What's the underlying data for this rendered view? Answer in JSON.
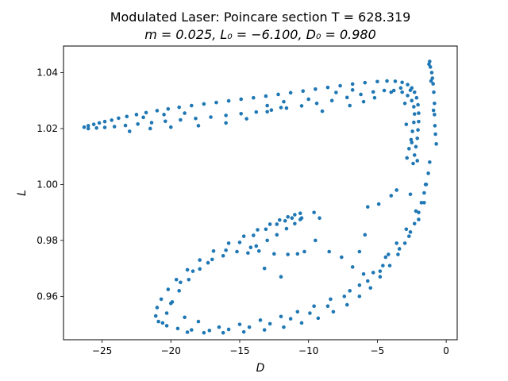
{
  "chart_data": {
    "type": "scatter",
    "title_line1": "Modulated Laser: Poincare section T = 628.319",
    "title_line2": "m = 0.025, L₀ = −6.100, D₀ = 0.980",
    "xlabel": "D",
    "ylabel": "L",
    "xlim": [
      -27.8,
      0.8
    ],
    "ylim": [
      0.9445,
      1.0495
    ],
    "xticks": [
      -25,
      -20,
      -15,
      -10,
      -5,
      0
    ],
    "xtick_labels": [
      "−25",
      "−20",
      "−15",
      "−10",
      "−5",
      "0"
    ],
    "yticks": [
      0.96,
      0.98,
      1.0,
      1.02,
      1.04
    ],
    "ytick_labels": [
      "0.96",
      "0.98",
      "1.00",
      "1.02",
      "1.04"
    ],
    "grid": false,
    "marker_color": "#1f77b4",
    "series": [
      {
        "points": [
          [
            -26.3,
            1.0205
          ],
          [
            -26.0,
            1.021
          ],
          [
            -25.6,
            1.0215
          ],
          [
            -25.2,
            1.022
          ],
          [
            -24.8,
            1.0225
          ],
          [
            -24.3,
            1.023
          ],
          [
            -23.8,
            1.0237
          ],
          [
            -23.2,
            1.0243
          ],
          [
            -22.5,
            1.025
          ],
          [
            -21.8,
            1.0257
          ],
          [
            -21.0,
            1.0264
          ],
          [
            -20.2,
            1.027
          ],
          [
            -19.4,
            1.0276
          ],
          [
            -18.5,
            1.0282
          ],
          [
            -17.6,
            1.0288
          ],
          [
            -16.7,
            1.0293
          ],
          [
            -15.8,
            1.0299
          ],
          [
            -14.9,
            1.0305
          ],
          [
            -14.0,
            1.031
          ],
          [
            -13.1,
            1.0316
          ],
          [
            -12.2,
            1.0322
          ],
          [
            -11.3,
            1.0328
          ],
          [
            -10.4,
            1.0334
          ],
          [
            -9.5,
            1.0341
          ],
          [
            -8.6,
            1.0347
          ],
          [
            -7.7,
            1.0353
          ],
          [
            -6.8,
            1.0359
          ],
          [
            -5.9,
            1.0364
          ],
          [
            -5.0,
            1.0368
          ],
          [
            -4.3,
            1.037
          ],
          [
            -3.7,
            1.0369
          ],
          [
            -3.2,
            1.0365
          ],
          [
            -2.8,
            1.0357
          ],
          [
            -2.5,
            1.0345
          ],
          [
            -2.3,
            1.033
          ],
          [
            -2.15,
            1.031
          ],
          [
            -2.05,
            1.0285
          ],
          [
            -2.0,
            1.0255
          ],
          [
            -2.0,
            1.0225
          ],
          [
            -2.05,
            1.0195
          ],
          [
            -2.1,
            1.0165
          ],
          [
            -2.2,
            1.0135
          ],
          [
            -2.3,
            1.0105
          ],
          [
            -2.4,
            1.0075
          ],
          [
            -26.0,
            1.02
          ],
          [
            -25.4,
            1.0202
          ],
          [
            -24.8,
            1.0204
          ],
          [
            -24.1,
            1.0207
          ],
          [
            -23.3,
            1.0211
          ],
          [
            -22.4,
            1.0216
          ],
          [
            -21.4,
            1.0221
          ],
          [
            -20.4,
            1.0226
          ],
          [
            -19.3,
            1.0231
          ],
          [
            -18.2,
            1.0236
          ],
          [
            -17.1,
            1.0241
          ],
          [
            -16.0,
            1.0247
          ],
          [
            -14.9,
            1.0253
          ],
          [
            -13.8,
            1.0259
          ],
          [
            -12.7,
            1.0266
          ],
          [
            -11.6,
            1.0273
          ],
          [
            -10.5,
            1.0281
          ],
          [
            -9.4,
            1.029
          ],
          [
            -8.3,
            1.03
          ],
          [
            -7.2,
            1.0311
          ],
          [
            -6.2,
            1.0322
          ],
          [
            -5.3,
            1.0331
          ],
          [
            -4.5,
            1.0336
          ],
          [
            -3.8,
            1.0336
          ],
          [
            -3.2,
            1.033
          ],
          [
            -2.8,
            1.0318
          ],
          [
            -2.5,
            1.03
          ],
          [
            -2.35,
            1.0278
          ],
          [
            -2.3,
            1.0252
          ],
          [
            -2.35,
            1.0222
          ],
          [
            -2.45,
            1.019
          ],
          [
            -2.55,
            1.016
          ],
          [
            -2.7,
            1.0128
          ],
          [
            -2.85,
            1.0095
          ],
          [
            -23.0,
            1.019
          ],
          [
            -21.5,
            1.02
          ],
          [
            -20.0,
            1.0205
          ],
          [
            -18.0,
            1.021
          ],
          [
            -16.0,
            1.022
          ],
          [
            -14.5,
            1.0235
          ],
          [
            -13.0,
            1.026
          ],
          [
            -12.0,
            1.0275
          ],
          [
            -9.0,
            1.0262
          ],
          [
            -7.0,
            1.0282
          ],
          [
            -6.0,
            1.0296
          ],
          [
            -5.2,
            1.031
          ],
          [
            -4.0,
            1.033
          ],
          [
            -3.3,
            1.0345
          ],
          [
            -2.6,
            1.0337
          ],
          [
            -3.0,
            1.029
          ],
          [
            -2.9,
            1.0215
          ],
          [
            -2.5,
            1.015
          ],
          [
            -2.1,
            1.0085
          ],
          [
            -6.8,
            1.0338
          ],
          [
            -8.0,
            1.0329
          ],
          [
            -10.0,
            1.0305
          ],
          [
            -11.8,
            1.0296
          ],
          [
            -13.0,
            1.0282
          ],
          [
            -22.0,
            1.024
          ],
          [
            -20.5,
            1.025
          ],
          [
            -19.0,
            1.0255
          ],
          [
            -1.2,
            1.044
          ],
          [
            -1.15,
            1.042
          ],
          [
            -1.05,
            1.04
          ],
          [
            -1.0,
            1.038
          ],
          [
            -0.95,
            1.036
          ],
          [
            -0.9,
            1.033
          ],
          [
            -0.85,
            1.029
          ],
          [
            -0.85,
            1.025
          ],
          [
            -0.82,
            1.021
          ],
          [
            -0.78,
            1.018
          ],
          [
            -0.72,
            1.0145
          ],
          [
            -1.25,
            1.043
          ],
          [
            -1.1,
            1.037
          ],
          [
            -0.92,
            1.0265
          ],
          [
            -1.2,
            1.008
          ],
          [
            -1.3,
            1.004
          ],
          [
            -1.45,
            1.0
          ],
          [
            -1.6,
            0.997
          ],
          [
            -1.8,
            0.9935
          ],
          [
            -2.0,
            0.99
          ],
          [
            -2.3,
            0.986
          ],
          [
            -2.6,
            0.983
          ],
          [
            -3.0,
            0.979
          ],
          [
            -3.5,
            0.975
          ],
          [
            -4.1,
            0.971
          ],
          [
            -4.8,
            0.967
          ],
          [
            -5.5,
            0.963
          ],
          [
            -6.3,
            0.96
          ],
          [
            -7.2,
            0.957
          ],
          [
            -8.2,
            0.9545
          ],
          [
            -9.3,
            0.9522
          ],
          [
            -10.5,
            0.9505
          ],
          [
            -11.8,
            0.949
          ],
          [
            -13.2,
            0.948
          ],
          [
            -14.7,
            0.9473
          ],
          [
            -16.2,
            0.947
          ],
          [
            -17.6,
            0.947
          ],
          [
            -18.8,
            0.9472
          ],
          [
            -1.5,
            1.0
          ],
          [
            -2.2,
            0.9905
          ],
          [
            -2.9,
            0.984
          ],
          [
            -3.6,
            0.979
          ],
          [
            -4.4,
            0.974
          ],
          [
            -5.3,
            0.9685
          ],
          [
            -6.3,
            0.964
          ],
          [
            -7.4,
            0.96
          ],
          [
            -8.6,
            0.9565
          ],
          [
            -9.9,
            0.954
          ],
          [
            -11.3,
            0.952
          ],
          [
            -12.8,
            0.9502
          ],
          [
            -14.3,
            0.949
          ],
          [
            -15.8,
            0.9482
          ],
          [
            -17.2,
            0.9478
          ],
          [
            -18.5,
            0.948
          ],
          [
            -19.5,
            0.9485
          ],
          [
            -20.3,
            0.9495
          ],
          [
            -20.9,
            0.951
          ],
          [
            -21.1,
            0.953
          ],
          [
            -21.0,
            0.956
          ],
          [
            -20.7,
            0.959
          ],
          [
            -20.2,
            0.9625
          ],
          [
            -19.6,
            0.966
          ],
          [
            -18.8,
            0.9695
          ],
          [
            -17.9,
            0.973
          ],
          [
            -16.9,
            0.9762
          ],
          [
            -15.8,
            0.979
          ],
          [
            -14.7,
            0.9815
          ],
          [
            -13.7,
            0.9838
          ],
          [
            -12.8,
            0.9858
          ],
          [
            -12.1,
            0.9873
          ],
          [
            -11.5,
            0.9884
          ],
          [
            -11.0,
            0.9892
          ],
          [
            -10.6,
            0.9897
          ],
          [
            -20.6,
            0.9505
          ],
          [
            -20.3,
            0.954
          ],
          [
            -19.9,
            0.958
          ],
          [
            -19.4,
            0.962
          ],
          [
            -18.7,
            0.966
          ],
          [
            -17.9,
            0.9698
          ],
          [
            -17.0,
            0.9732
          ],
          [
            -16.0,
            0.9765
          ],
          [
            -15.0,
            0.9793
          ],
          [
            -14.0,
            0.9818
          ],
          [
            -13.1,
            0.984
          ],
          [
            -12.3,
            0.9858
          ],
          [
            -11.7,
            0.987
          ],
          [
            -11.2,
            0.988
          ],
          [
            -13.8,
            0.978
          ],
          [
            -13.0,
            0.98
          ],
          [
            -12.3,
            0.982
          ],
          [
            -11.6,
            0.9842
          ],
          [
            -11.0,
            0.986
          ],
          [
            -10.6,
            0.9875
          ],
          [
            -13.6,
            0.9762
          ],
          [
            -12.5,
            0.9752
          ],
          [
            -11.5,
            0.975
          ],
          [
            -10.8,
            0.9752
          ],
          [
            -14.4,
            0.9755
          ],
          [
            -13.2,
            0.97
          ],
          [
            -12.0,
            0.967
          ],
          [
            -10.3,
            0.976
          ],
          [
            -9.5,
            0.98
          ],
          [
            -8.5,
            0.976
          ],
          [
            -7.6,
            0.974
          ],
          [
            -6.8,
            0.9705
          ],
          [
            -6.0,
            0.968
          ],
          [
            -4.8,
            0.969
          ],
          [
            -4.2,
            0.975
          ],
          [
            -10.5,
            0.988
          ],
          [
            -9.6,
            0.99
          ],
          [
            -9.2,
            0.988
          ],
          [
            -6.3,
            0.976
          ],
          [
            -5.9,
            0.982
          ],
          [
            -5.7,
            0.992
          ],
          [
            -4.9,
            0.993
          ],
          [
            -4.0,
            0.996
          ],
          [
            -3.6,
            0.998
          ],
          [
            -2.6,
            0.9965
          ],
          [
            -19.0,
            0.9525
          ],
          [
            -18.0,
            0.951
          ],
          [
            -20.0,
            0.9575
          ],
          [
            -19.3,
            0.965
          ],
          [
            -18.4,
            0.969
          ],
          [
            -17.3,
            0.972
          ],
          [
            -16.2,
            0.9745
          ],
          [
            -15.2,
            0.976
          ],
          [
            -14.2,
            0.9775
          ],
          [
            -16.5,
            0.949
          ],
          [
            -15.0,
            0.95
          ],
          [
            -13.5,
            0.9515
          ],
          [
            -12.0,
            0.9528
          ],
          [
            -10.8,
            0.9545
          ],
          [
            -9.6,
            0.9565
          ],
          [
            -8.4,
            0.959
          ],
          [
            -7.0,
            0.962
          ],
          [
            -5.7,
            0.9655
          ],
          [
            -4.6,
            0.971
          ],
          [
            -3.4,
            0.977
          ],
          [
            -2.7,
            0.9815
          ],
          [
            -2.0,
            0.9875
          ],
          [
            -1.6,
            0.9935
          ]
        ]
      }
    ]
  }
}
